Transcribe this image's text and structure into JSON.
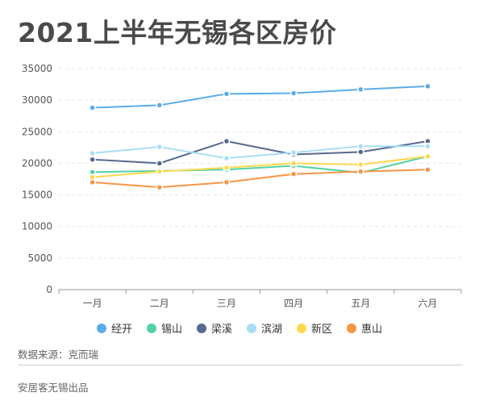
{
  "title": "2021上半年无锡各区房价",
  "source_text": "数据来源：克而瑞",
  "footer_text": "安居客无锡出品",
  "chart_data": {
    "type": "line",
    "title": "2021上半年无锡各区房价",
    "xlabel": "",
    "ylabel": "",
    "categories": [
      "一月",
      "二月",
      "三月",
      "四月",
      "五月",
      "六月"
    ],
    "ylim": [
      0,
      35000
    ],
    "yticks": [
      0,
      5000,
      10000,
      15000,
      20000,
      25000,
      30000,
      35000
    ],
    "grid": true,
    "legend_position": "bottom",
    "series": [
      {
        "name": "经开",
        "color": "#5aace8",
        "values": [
          28800,
          29200,
          31000,
          31100,
          31700,
          32200
        ]
      },
      {
        "name": "锡山",
        "color": "#55d1a7",
        "values": [
          18600,
          18800,
          19000,
          19600,
          18500,
          21100
        ]
      },
      {
        "name": "梁溪",
        "color": "#56698f",
        "values": [
          20600,
          20000,
          23500,
          21400,
          21800,
          23500
        ]
      },
      {
        "name": "滨湖",
        "color": "#a7def6",
        "values": [
          21600,
          22600,
          20800,
          21700,
          22700,
          22700
        ]
      },
      {
        "name": "新区",
        "color": "#fdd94f",
        "values": [
          17800,
          18700,
          19300,
          20000,
          19800,
          21100
        ]
      },
      {
        "name": "惠山",
        "color": "#f79646",
        "values": [
          17000,
          16200,
          17000,
          18300,
          18700,
          19000
        ]
      }
    ]
  }
}
